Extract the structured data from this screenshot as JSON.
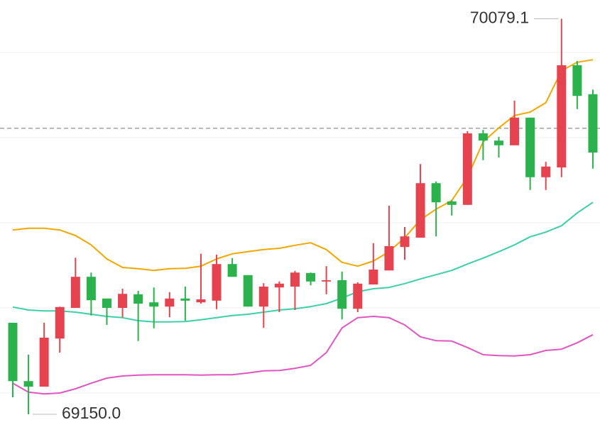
{
  "chart_data": {
    "type": "candlestick",
    "up_color": "#e4434f",
    "down_color": "#2bb24c",
    "open": [
      69365,
      69228,
      69215,
      69328,
      69400,
      69473,
      69422,
      69400,
      69432,
      69413,
      69403,
      69422,
      69413,
      69417,
      69503,
      69477,
      69403,
      69448,
      69450,
      69482,
      69462,
      69465,
      69398,
      69455,
      69488,
      69543,
      69565,
      69693,
      69650,
      69642,
      69810,
      69793,
      69782,
      69847,
      69707,
      69730,
      69970,
      69902
    ],
    "high": [
      69365,
      69290,
      69365,
      69403,
      69518,
      69483,
      69422,
      69445,
      69440,
      69448,
      69437,
      69450,
      69527,
      69525,
      69517,
      69477,
      69458,
      69462,
      69487,
      69483,
      69498,
      69485,
      69460,
      69552,
      69640,
      69590,
      69738,
      69697,
      69653,
      69815,
      69818,
      69802,
      69887,
      69847,
      69743,
      70079.1,
      69980,
      69913
    ],
    "low": [
      69190,
      69150.0,
      69215,
      69295,
      69400,
      69382,
      69360,
      69378,
      69322,
      69352,
      69378,
      69370,
      69410,
      69397,
      69473,
      69403,
      69353,
      69390,
      69395,
      69453,
      69432,
      69373,
      69390,
      69455,
      69488,
      69513,
      69565,
      69568,
      69617,
      69642,
      69747,
      69753,
      69782,
      69677,
      69677,
      69707,
      69867,
      69727
    ],
    "close": [
      69228,
      69215,
      69330,
      69402,
      69473,
      69418,
      69400,
      69433,
      69410,
      69403,
      69422,
      69417,
      69420,
      69503,
      69473,
      69403,
      69450,
      69457,
      69483,
      69462,
      69465,
      69398,
      69457,
      69490,
      69545,
      69568,
      69693,
      69648,
      69642,
      69810,
      69793,
      69782,
      69847,
      69707,
      69732,
      69970,
      69898,
      69765
    ],
    "bands": [
      {
        "color": "#f0a800",
        "values": [
          69583,
          69587,
          69587,
          69583,
          69570,
          69548,
          69515,
          69495,
          69492,
          69488,
          69492,
          69493,
          69498,
          69515,
          69527,
          69532,
          69537,
          69540,
          69547,
          69553,
          69537,
          69507,
          69498,
          69510,
          69532,
          69565,
          69607,
          69632,
          69652,
          69707,
          69790,
          69823,
          69852,
          69860,
          69882,
          69957,
          69977,
          69983
        ]
      },
      {
        "color": "#3dcfa6",
        "values": [
          69402,
          69395,
          69393,
          69393,
          69390,
          69385,
          69380,
          69377,
          69370,
          69367,
          69367,
          69368,
          69372,
          69377,
          69382,
          69385,
          69390,
          69395,
          69398,
          69403,
          69410,
          69423,
          69438,
          69445,
          69448,
          69457,
          69468,
          69478,
          69488,
          69503,
          69517,
          69532,
          69548,
          69567,
          69578,
          69593,
          69623,
          69648
        ]
      },
      {
        "color": "#e055c0",
        "values": [
          69223,
          69202,
          69198,
          69200,
          69210,
          69223,
          69235,
          69240,
          69242,
          69243,
          69243,
          69243,
          69242,
          69243,
          69243,
          69247,
          69252,
          69253,
          69258,
          69265,
          69295,
          69353,
          69377,
          69380,
          69377,
          69360,
          69332,
          69323,
          69322,
          69307,
          69290,
          69288,
          69287,
          69290,
          69300,
          69303,
          69318,
          69337
        ]
      }
    ],
    "price_line": 69822,
    "annotations": [
      {
        "value": 70079.1,
        "label": "70079.1"
      },
      {
        "value": 69150.0,
        "label": "69150.0"
      }
    ],
    "ylim": [
      69096.7,
      70123.3
    ],
    "yticks": [
      69200,
      69400,
      69600,
      69800,
      70000
    ],
    "grid": true
  }
}
